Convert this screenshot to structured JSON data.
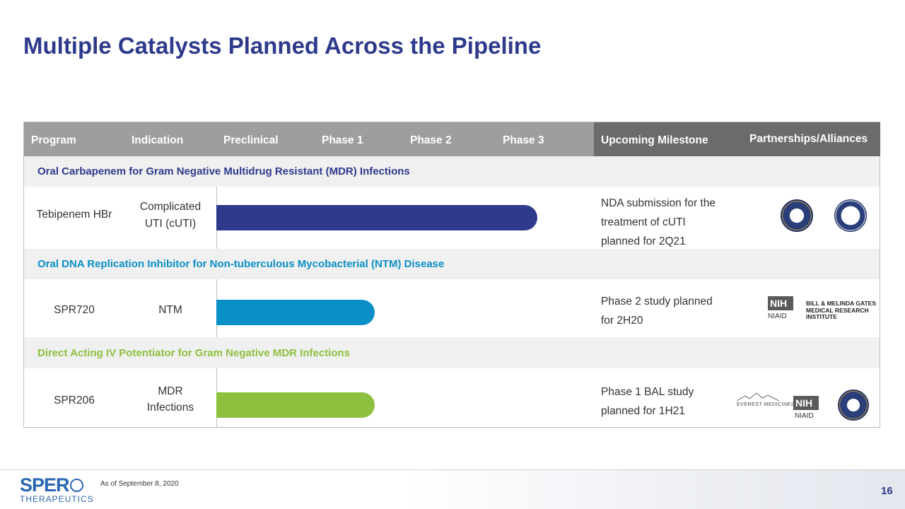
{
  "title": "Multiple Catalysts Planned Across the Pipeline",
  "header": {
    "program": "Program",
    "indication": "Indication",
    "preclinical": "Preclinical",
    "phase1": "Phase 1",
    "phase2": "Phase 2",
    "phase3": "Phase 3",
    "milestone": "Upcoming Milestone",
    "partners": "Partnerships/Alliances"
  },
  "colors": {
    "title": "#2e3a8c",
    "tebipenem": "#2e3a8c",
    "spr720": "#0a8fc6",
    "spr206": "#8dc03f"
  },
  "sections": [
    {
      "category": "Oral Carbapenem for Gram Negative Multidrug Resistant (MDR) Infections",
      "program": "Tebipenem HBr",
      "indication_line1": "Complicated",
      "indication_line2": "UTI (cUTI)",
      "progress_pct": 85,
      "milestone_lines": [
        "NDA submission for the",
        "treatment of cUTI",
        "planned for 2Q21"
      ],
      "partners": [
        "dod-seal",
        "barda-seal"
      ]
    },
    {
      "category": "Oral DNA Replication Inhibitor for Non-tuberculous Mycobacterial (NTM) Disease",
      "program": "SPR720",
      "indication_line1": "NTM",
      "progress_pct": 42,
      "milestone_lines": [
        "Phase 2 study planned",
        "for 2H20"
      ],
      "partners": [
        "NIH",
        "NIAID",
        "BILL & MELINDA GATES",
        "MEDICAL RESEARCH",
        "INSTITUTE"
      ]
    },
    {
      "category": "Direct Acting IV Potentiator for Gram Negative MDR Infections",
      "program": "SPR206",
      "indication_line1": "MDR",
      "indication_line2": "Infections",
      "progress_pct": 42,
      "milestone_lines": [
        "Phase 1 BAL study",
        "planned for 1H21"
      ],
      "partners": [
        "EVEREST MEDICINES",
        "NIH",
        "NIAID",
        "dod-seal"
      ]
    }
  ],
  "footer": {
    "logo_main": "SPER",
    "logo_sub": "THERAPEUTICS",
    "as_of": "As of September 8, 2020",
    "page": "16"
  }
}
